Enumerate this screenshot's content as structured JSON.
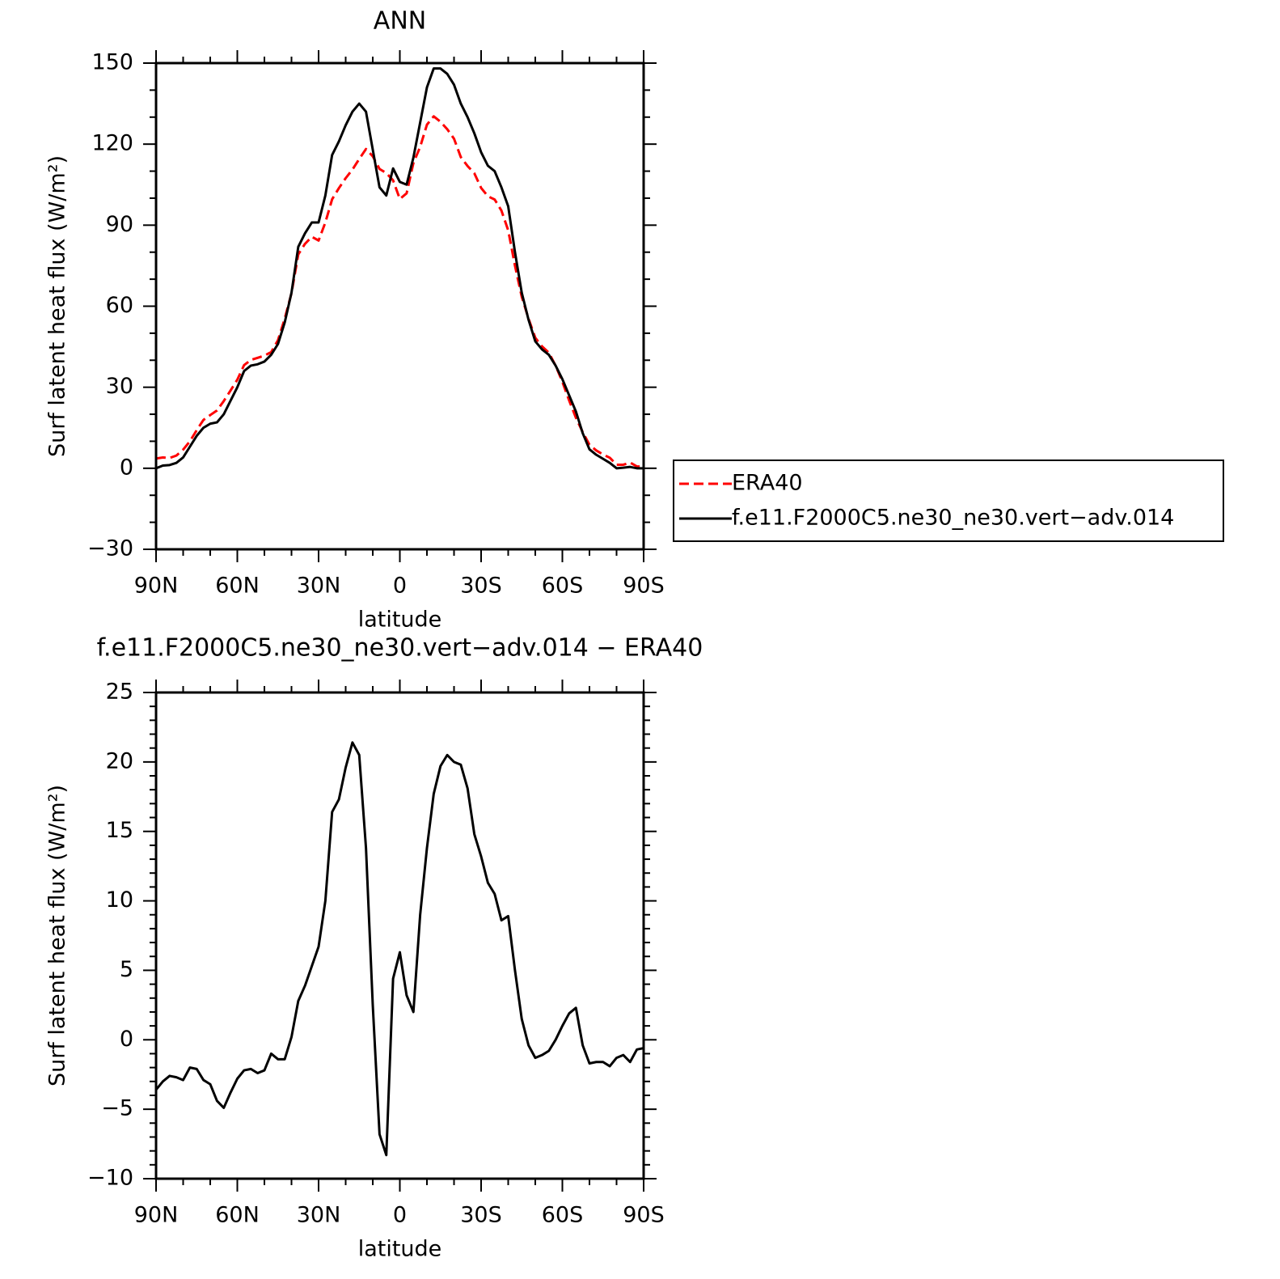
{
  "chart_data": [
    {
      "type": "line",
      "title": "ANN",
      "x_label": "latitude",
      "y_label": "Surf latent heat flux (W/m²)",
      "x": [
        90,
        87.5,
        85,
        82.5,
        80,
        77.5,
        75,
        72.5,
        70,
        67.5,
        65,
        62.5,
        60,
        57.5,
        55,
        52.5,
        50,
        47.5,
        45,
        42.5,
        40,
        37.5,
        35,
        32.5,
        30,
        27.5,
        25,
        22.5,
        20,
        17.5,
        15,
        12.5,
        10,
        7.5,
        5,
        2.5,
        0,
        -2.5,
        -5,
        -7.5,
        -10,
        -12.5,
        -15,
        -17.5,
        -20,
        -22.5,
        -25,
        -27.5,
        -30,
        -32.5,
        -35,
        -37.5,
        -40,
        -42.5,
        -45,
        -47.5,
        -50,
        -52.5,
        -55,
        -57.5,
        -60,
        -62.5,
        -65,
        -67.5,
        -70,
        -72.5,
        -75,
        -77.5,
        -80,
        -82.5,
        -85,
        -87.5,
        -90
      ],
      "xlim": [
        90,
        -90
      ],
      "xticks": [
        {
          "value": 90,
          "label": "90N"
        },
        {
          "value": 60,
          "label": "60N"
        },
        {
          "value": 30,
          "label": "30N"
        },
        0,
        {
          "value": -30,
          "label": "30S"
        },
        {
          "value": -60,
          "label": "60S"
        },
        {
          "value": -90,
          "label": "90S"
        }
      ],
      "ylim": [
        -30,
        150
      ],
      "yticks": [
        {
          "value": -30,
          "label": "−30"
        },
        0,
        30,
        60,
        90,
        120,
        150
      ],
      "legend": "right",
      "series": [
        {
          "name": "ERA40",
          "color": "#ff0000",
          "dash": "dashed",
          "values": [
            3.6,
            4,
            3.8,
            4.7,
            6.9,
            10,
            14.1,
            17.9,
            19.7,
            21.4,
            24.9,
            28.8,
            32.8,
            38.2,
            40.1,
            40.9,
            41.7,
            43,
            47.4,
            55.4,
            64.8,
            79.2,
            83.1,
            85.7,
            84.3,
            91,
            99.6,
            103.7,
            107.4,
            110.6,
            114.5,
            118.2,
            115.5,
            110.8,
            109.3,
            106.6,
            99.7,
            101.8,
            113,
            119,
            127.2,
            130.3,
            128.3,
            125.5,
            122,
            115.2,
            111.9,
            109.2,
            103.8,
            100.7,
            99.5,
            95.4,
            88.1,
            75,
            63.5,
            55.4,
            48.3,
            45.1,
            42.8,
            38,
            32,
            25.1,
            18.7,
            13.4,
            8.7,
            6.6,
            5.1,
            3.9,
            1.3,
            1.3,
            2.1,
            0.7,
            0.6
          ]
        },
        {
          "name": "f.e11.F2000C5.ne30_ne30.vert−adv.014",
          "color": "#000000",
          "values": [
            0,
            1,
            1.2,
            2,
            4,
            8,
            12,
            15,
            16.5,
            17,
            20,
            25,
            30,
            36,
            38,
            38.5,
            39.5,
            42,
            46,
            54,
            65,
            82,
            87,
            91,
            91,
            101,
            116,
            121,
            127,
            132,
            135,
            132,
            118,
            104,
            101,
            111,
            106,
            105,
            115,
            128,
            141,
            148,
            148,
            146,
            142,
            135,
            130,
            124,
            117,
            112,
            110,
            104,
            97,
            80,
            65,
            55,
            47,
            44,
            42,
            38,
            33,
            27,
            21,
            13,
            7,
            5,
            3.5,
            2,
            0,
            0.2,
            0.5,
            0,
            0
          ]
        }
      ]
    },
    {
      "type": "line",
      "title": "f.e11.F2000C5.ne30_ne30.vert−adv.014 − ERA40",
      "x_label": "latitude",
      "y_label": "Surf latent heat flux (W/m²)",
      "x": [
        90,
        87.5,
        85,
        82.5,
        80,
        77.5,
        75,
        72.5,
        70,
        67.5,
        65,
        62.5,
        60,
        57.5,
        55,
        52.5,
        50,
        47.5,
        45,
        42.5,
        40,
        37.5,
        35,
        32.5,
        30,
        27.5,
        25,
        22.5,
        20,
        17.5,
        15,
        12.5,
        10,
        7.5,
        5,
        2.5,
        0,
        -2.5,
        -5,
        -7.5,
        -10,
        -12.5,
        -15,
        -17.5,
        -20,
        -22.5,
        -25,
        -27.5,
        -30,
        -32.5,
        -35,
        -37.5,
        -40,
        -42.5,
        -45,
        -47.5,
        -50,
        -52.5,
        -55,
        -57.5,
        -60,
        -62.5,
        -65,
        -67.5,
        -70,
        -72.5,
        -75,
        -77.5,
        -80,
        -82.5,
        -85,
        -87.5,
        -90
      ],
      "xlim": [
        90,
        -90
      ],
      "xticks": [
        {
          "value": 90,
          "label": "90N"
        },
        {
          "value": 60,
          "label": "60N"
        },
        {
          "value": 30,
          "label": "30N"
        },
        0,
        {
          "value": -30,
          "label": "30S"
        },
        {
          "value": -60,
          "label": "60S"
        },
        {
          "value": -90,
          "label": "90S"
        }
      ],
      "ylim": [
        -10,
        25
      ],
      "yticks": [
        {
          "value": -10,
          "label": "−10"
        },
        {
          "value": -5,
          "label": "−5"
        },
        0,
        5,
        10,
        15,
        20,
        25
      ],
      "series": [
        {
          "color": "#000000",
          "values": [
            -3.6,
            -3.0,
            -2.6,
            -2.7,
            -2.9,
            -2.0,
            -2.1,
            -2.9,
            -3.2,
            -4.4,
            -4.9,
            -3.8,
            -2.8,
            -2.2,
            -2.1,
            -2.4,
            -2.2,
            -1.0,
            -1.4,
            -1.4,
            0.2,
            2.8,
            3.9,
            5.3,
            6.7,
            10.0,
            16.4,
            17.3,
            19.6,
            21.4,
            20.5,
            13.8,
            2.5,
            -6.8,
            -8.3,
            4.4,
            6.3,
            3.2,
            2.0,
            9.0,
            13.8,
            17.7,
            19.7,
            20.5,
            20.0,
            19.8,
            18.1,
            14.8,
            13.2,
            11.3,
            10.5,
            8.6,
            8.9,
            5.0,
            1.5,
            -0.4,
            -1.3,
            -1.1,
            -0.8,
            0.0,
            1.0,
            1.9,
            2.3,
            -0.4,
            -1.7,
            -1.6,
            -1.6,
            -1.9,
            -1.3,
            -1.1,
            -1.6,
            -0.7,
            -0.6
          ]
        }
      ]
    }
  ]
}
